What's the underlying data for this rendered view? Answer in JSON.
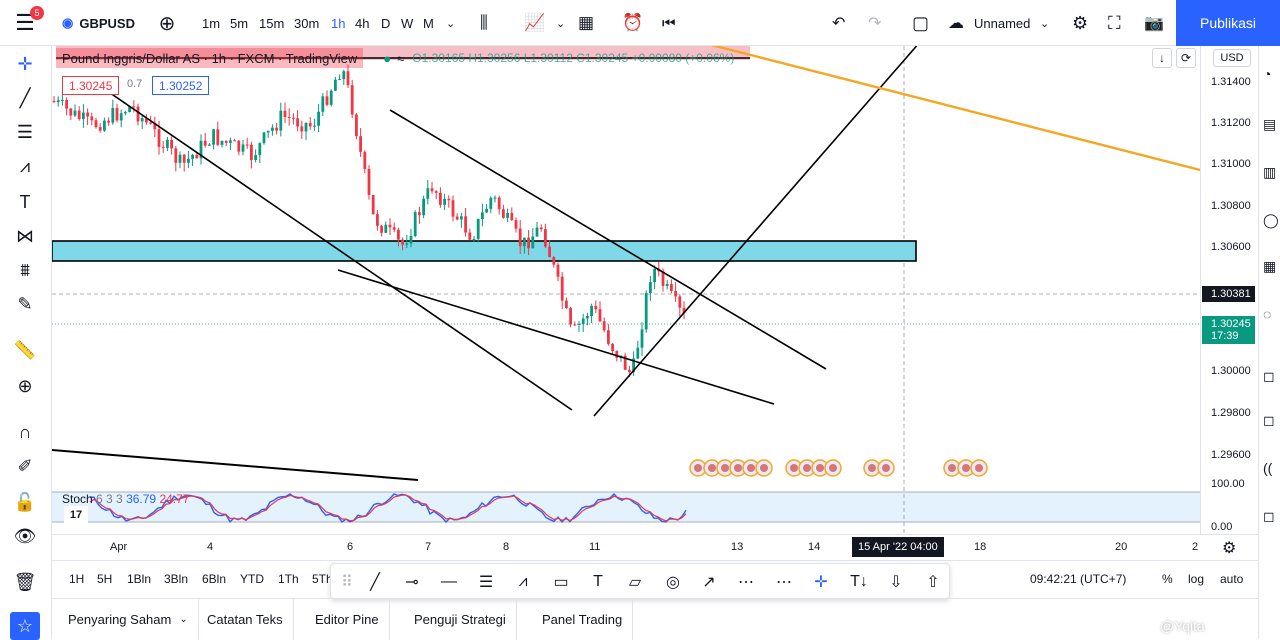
{
  "topbar": {
    "notifications": "5",
    "symbol": "GBPUSD",
    "timeframes": [
      "1m",
      "5m",
      "15m",
      "30m",
      "1h",
      "4h",
      "D",
      "W",
      "M"
    ],
    "active_timeframe": "1h",
    "layout_name": "Unnamed",
    "publish_label": "Publikasi"
  },
  "legend": {
    "title": "Pound Inggris/Dollar AS · 1h · FXCM · TradingView",
    "ohlc": "O1.30165 H1.30256 L1.30112 C1.30245 +0.00080 (+0.06%)",
    "sell_price": "1.30245",
    "spread": "0.7",
    "buy_price": "1.30252"
  },
  "price_axis": {
    "currency": "USD",
    "labels": [
      "1.31400",
      "1.31200",
      "1.31000",
      "1.30800",
      "1.30600",
      "1.30000",
      "1.29800",
      "1.29600"
    ],
    "crosshair_price": "1.30381",
    "current_price": "1.30245",
    "countdown": "17:39",
    "stoch_labels": [
      "100.00",
      "0.00"
    ]
  },
  "stoch": {
    "label": "Stoch",
    "params": "6 3 3",
    "k": "36.79",
    "d": "24.77"
  },
  "time_axis": {
    "labels": [
      "Apr",
      "4",
      "6",
      "7",
      "8",
      "11",
      "13",
      "14",
      "18",
      "20",
      "2"
    ],
    "crosshair_time": "15 Apr '22   04:00"
  },
  "ranges": [
    "1H",
    "5H",
    "1Bln",
    "3Bln",
    "6Bln",
    "YTD",
    "1Th",
    "5Th"
  ],
  "clock": "09:42:21 (UTC+7)",
  "scale_options": [
    "%",
    "log",
    "auto"
  ],
  "bottom_tabs": [
    "Penyaring Saham",
    "Catatan Teks",
    "Editor Pine",
    "Penguji Strategi",
    "Panel Trading"
  ],
  "watermark": "@Yqita",
  "colors": {
    "up": "#089981",
    "down": "#f23645",
    "accent": "#2962ff",
    "zone": "#7fd8e8",
    "orange_line": "#f5a623"
  }
}
